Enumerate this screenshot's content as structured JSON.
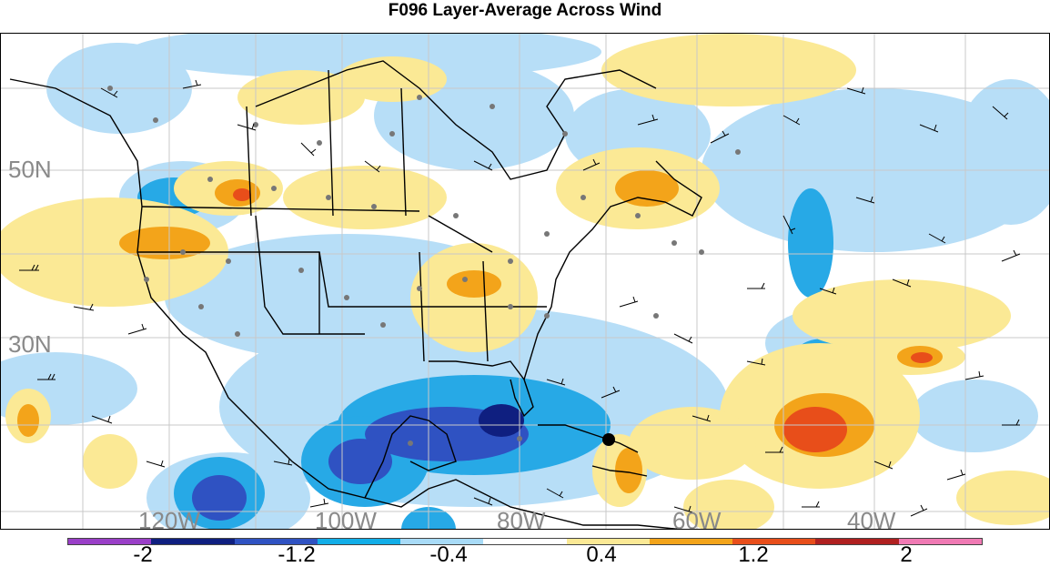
{
  "title": "F096 Layer-Average Across Wind",
  "lat_labels": [
    "50N",
    "30N"
  ],
  "lon_labels": [
    "120W",
    "100W",
    "80W",
    "60W",
    "40W"
  ],
  "colorbar": {
    "colors": [
      "#9a3fc8",
      "#0f1f80",
      "#2f52c2",
      "#12aee8",
      "#a8dbf7",
      "#ffffff",
      "#fbe995",
      "#f3a41a",
      "#e84e1a",
      "#b02020",
      "#f07ab4"
    ],
    "labels": [
      "-2",
      "-1.2",
      "-0.4",
      "0.4",
      "1.2",
      "2"
    ]
  },
  "legend_colors": {
    "cool_light": "#b7def7",
    "cool_mid": "#27a9e6",
    "cool_dark": "#2f52c2",
    "cool_darkest": "#0f1f80",
    "warm_light": "#fbe995",
    "warm_mid": "#f3a41a",
    "warm_dark": "#e84e1a"
  }
}
